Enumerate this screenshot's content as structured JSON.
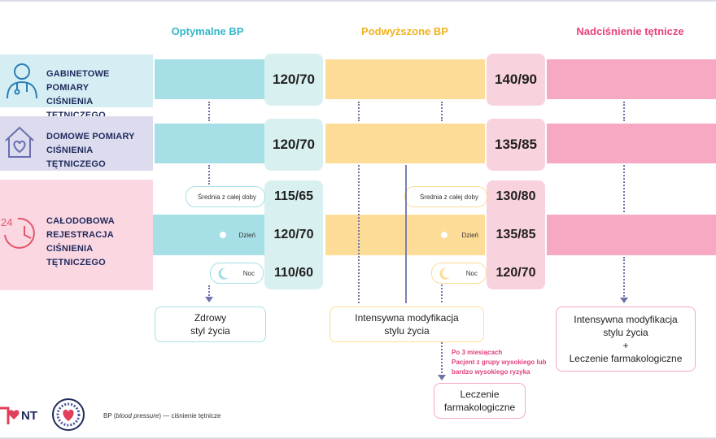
{
  "columns": {
    "optimal": {
      "label": "Optymalne BP",
      "color": "#35b6c9"
    },
    "elevated": {
      "label": "Podwyższone BP",
      "color": "#f2b21c"
    },
    "hypertension": {
      "label": "Nadciśnienie tętnicze",
      "color": "#e8417f"
    }
  },
  "rows": {
    "office": {
      "label_line1": "GABINETOWE POMIARY",
      "label_line2": "CIŚNIENIA TĘTNICZEGO",
      "icon": "doctor-icon",
      "optimal_value": "120/70",
      "hypertension_value": "140/90"
    },
    "home": {
      "label_line1": "DOMOWE POMIARY",
      "label_line2": "CIŚNIENIA TĘTNICZEGO",
      "icon": "home-heart-icon",
      "optimal_value": "120/70",
      "hypertension_value": "135/85"
    },
    "abpm": {
      "label_line1": "CAŁODOBOWA",
      "label_line2": "REJESTRACJA CIŚNIENIA",
      "label_line3": "TĘTNICZEGO",
      "icon": "clock-24-icon",
      "day_avg_label": "Średnia z całej doby",
      "day_label": "Dzień",
      "night_label": "Noc",
      "optimal_24h": "115/65",
      "optimal_day": "120/70",
      "optimal_night": "110/60",
      "hypertension_24h": "130/80",
      "hypertension_day": "135/85",
      "hypertension_night": "120/70"
    }
  },
  "outcomes": {
    "optimal": "Zdrowy\nstyl życia",
    "elevated": "Intensywna modyfikacja\nstylu życia",
    "hypertension": "Intensywna modyfikacja\nstylu życia\n+\nLeczenie farmakologiczne",
    "pharm": "Leczenie\nfarmakologiczne"
  },
  "note": "Po 3 miesiącach\nPacjent z grupy wysokiego lub\nbardzo wysokiego ryzyka",
  "footer": {
    "legend_abbr": "BP",
    "legend_italic": "blood pressure",
    "legend_rest": " — ciśnienie tętnicze",
    "logo1": "NT"
  },
  "colors": {
    "optimal_bar": "#a6dfe6",
    "elevated_bar": "#fddc97",
    "hypertension_bar": "#f7a8c2",
    "row_office_bg": "#d5eef4",
    "row_home_bg": "#dcdcee",
    "row_abpm_bg": "#fbd7e2",
    "optimal_val_bg": "#d9f0f0",
    "hyper_val_bg": "#f8d2dc",
    "navy": "#1f2a5c"
  }
}
